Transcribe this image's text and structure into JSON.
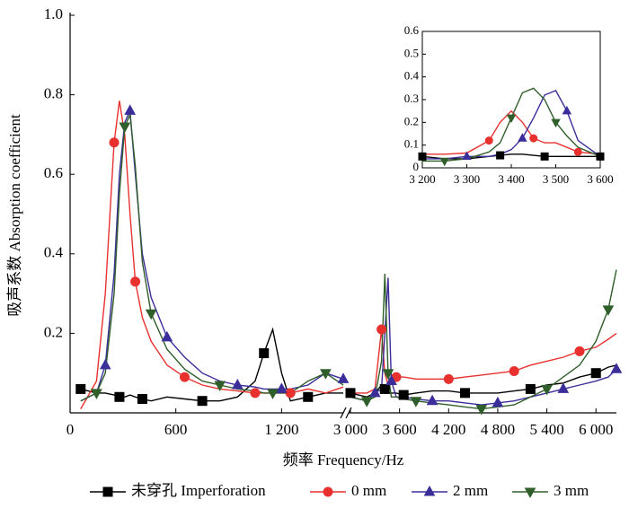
{
  "chart_data": [
    {
      "type": "line",
      "xlabel": "频率 Frequency/Hz",
      "ylabel": "吸声系数 Absorption coefficient",
      "ylim": [
        0,
        1
      ],
      "yticks": [
        0.2,
        0.4,
        0.6,
        0.8,
        {
          "value": 1,
          "label": "1.0"
        }
      ],
      "x_segments": [
        {
          "xlim": [
            0,
            1550
          ],
          "xticks": [
            0,
            600,
            {
              "value": 1200,
              "label": "1 200"
            }
          ]
        },
        {
          "xlim": [
            3000,
            6250
          ],
          "xticks": [
            {
              "value": 3000,
              "label": "3 000"
            },
            {
              "value": 3600,
              "label": "3 600"
            },
            {
              "value": 4200,
              "label": "4 200"
            },
            {
              "value": 4800,
              "label": "4 800"
            },
            {
              "value": 5400,
              "label": "5 400"
            },
            {
              "value": 6000,
              "label": "6 000"
            }
          ]
        }
      ],
      "x": [
        60,
        150,
        200,
        250,
        280,
        310,
        340,
        370,
        410,
        460,
        550,
        650,
        750,
        850,
        950,
        1050,
        1100,
        1150,
        1200,
        1250,
        1350,
        1450,
        1550,
        null,
        3000,
        3200,
        3300,
        3380,
        3420,
        3460,
        3500,
        3560,
        3650,
        3800,
        4000,
        4200,
        4400,
        4600,
        4800,
        5000,
        5200,
        5400,
        5600,
        5800,
        6000,
        6150,
        6250
      ],
      "series": [
        {
          "name": "未穿孔 Imperforation",
          "color": "#000000",
          "marker": "square",
          "values": [
            0.06,
            0.05,
            0.05,
            0.045,
            0.04,
            0.04,
            0.045,
            0.04,
            0.035,
            0.03,
            0.04,
            0.035,
            0.03,
            0.03,
            0.04,
            0.08,
            0.15,
            0.21,
            0.1,
            0.03,
            0.04,
            0.05,
            0.05,
            null,
            0.05,
            0.04,
            0.05,
            0.07,
            0.06,
            0.05,
            0.05,
            0.05,
            0.045,
            0.05,
            0.055,
            0.055,
            0.05,
            0.05,
            0.05,
            0.055,
            0.06,
            0.07,
            0.075,
            0.09,
            0.1,
            0.115,
            0.12
          ]
        },
        {
          "name": "0 mm",
          "color": "#e8312f",
          "marker": "circle",
          "values": [
            0.01,
            0.08,
            0.3,
            0.68,
            0.785,
            0.7,
            0.5,
            0.33,
            0.24,
            0.18,
            0.12,
            0.09,
            0.07,
            0.06,
            0.055,
            0.05,
            0.05,
            0.05,
            0.05,
            0.05,
            0.06,
            0.05,
            0.065,
            null,
            0.05,
            0.05,
            0.06,
            0.21,
            0.1,
            0.07,
            0.08,
            0.09,
            0.09,
            0.085,
            0.085,
            0.085,
            0.09,
            0.095,
            0.1,
            0.105,
            0.12,
            0.13,
            0.14,
            0.155,
            0.165,
            0.185,
            0.2
          ]
        },
        {
          "name": "2 mm",
          "color": "#3b2e9a",
          "marker": "triangle",
          "values": [
            0.03,
            0.05,
            0.12,
            0.35,
            0.6,
            0.73,
            0.76,
            0.6,
            0.4,
            0.29,
            0.19,
            0.14,
            0.1,
            0.08,
            0.07,
            0.065,
            0.06,
            0.06,
            0.06,
            0.06,
            0.07,
            0.1,
            0.085,
            null,
            0.04,
            0.03,
            0.05,
            0.06,
            0.2,
            0.34,
            0.08,
            0.04,
            0.04,
            0.035,
            0.03,
            0.03,
            0.025,
            0.02,
            0.025,
            0.03,
            0.04,
            0.05,
            0.06,
            0.07,
            0.08,
            0.09,
            0.11
          ]
        },
        {
          "name": "3 mm",
          "color": "#2f5e2a",
          "marker": "triangle-down",
          "values": [
            0.03,
            0.05,
            0.1,
            0.3,
            0.55,
            0.72,
            0.75,
            0.62,
            0.38,
            0.25,
            0.16,
            0.11,
            0.08,
            0.07,
            0.06,
            0.055,
            0.05,
            0.05,
            0.05,
            0.05,
            0.08,
            0.1,
            0.07,
            null,
            0.04,
            0.03,
            0.04,
            0.13,
            0.35,
            0.1,
            0.04,
            0.04,
            0.035,
            0.03,
            0.025,
            0.02,
            0.015,
            0.01,
            0.015,
            0.02,
            0.04,
            0.06,
            0.09,
            0.12,
            0.18,
            0.26,
            0.36
          ]
        }
      ]
    },
    {
      "type": "line",
      "xlim": [
        3200,
        3600
      ],
      "xticks": [
        {
          "value": 3200,
          "label": "3 200"
        },
        {
          "value": 3300,
          "label": "3 300"
        },
        {
          "value": 3400,
          "label": "3 400"
        },
        {
          "value": 3500,
          "label": "3 500"
        },
        {
          "value": 3600,
          "label": "3 600"
        }
      ],
      "ylim": [
        0,
        0.6
      ],
      "yticks": [
        0,
        0.1,
        0.2,
        0.3,
        0.4,
        0.5,
        0.6
      ],
      "x": [
        3200,
        3250,
        3300,
        3350,
        3375,
        3400,
        3425,
        3450,
        3475,
        3500,
        3525,
        3550,
        3600
      ],
      "series": [
        {
          "color": "#000000",
          "marker": "square",
          "values": [
            0.05,
            0.04,
            0.04,
            0.05,
            0.055,
            0.06,
            0.06,
            0.055,
            0.05,
            0.05,
            0.05,
            0.05,
            0.05
          ]
        },
        {
          "color": "#e8312f",
          "marker": "circle",
          "values": [
            0.06,
            0.06,
            0.065,
            0.12,
            0.2,
            0.25,
            0.2,
            0.13,
            0.11,
            0.11,
            0.09,
            0.07,
            0.06
          ]
        },
        {
          "color": "#3b2e9a",
          "marker": "triangle",
          "values": [
            0.04,
            0.04,
            0.05,
            0.05,
            0.06,
            0.08,
            0.13,
            0.22,
            0.32,
            0.34,
            0.25,
            0.12,
            0.05
          ]
        },
        {
          "color": "#2f5e2a",
          "marker": "triangle-down",
          "values": [
            0.03,
            0.03,
            0.04,
            0.07,
            0.11,
            0.22,
            0.33,
            0.35,
            0.3,
            0.2,
            0.14,
            0.09,
            0.05
          ]
        }
      ]
    }
  ]
}
